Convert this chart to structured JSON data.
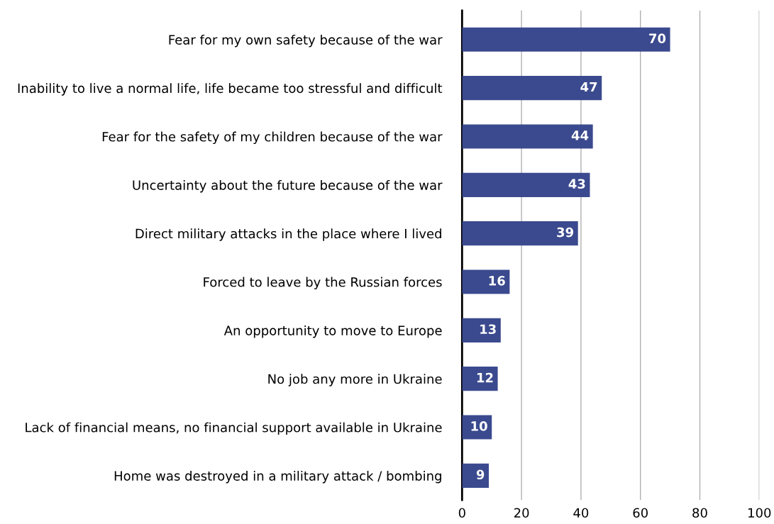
{
  "chart_data": {
    "type": "bar",
    "orientation": "horizontal",
    "categories": [
      "Fear for my own safety because of the war",
      "Inability to live a normal life, life became too stressful and difficult",
      "Fear for the safety of my children because of the war",
      "Uncertainty about the future because of the war",
      "Direct military attacks in the place where I lived",
      "Forced to leave by the Russian forces",
      "An opportunity to move to Europe",
      "No job any more in Ukraine",
      "Lack of financial means, no financial support available in Ukraine",
      "Home was destroyed in a military attack / bombing"
    ],
    "values": [
      70,
      47,
      44,
      43,
      39,
      16,
      13,
      12,
      10,
      9
    ],
    "color": "#3b4a8e",
    "data_labels": true,
    "xlim": [
      0,
      100
    ],
    "xticks": [
      0,
      20,
      40,
      60,
      80,
      100
    ],
    "grid": "x",
    "legend": false
  }
}
